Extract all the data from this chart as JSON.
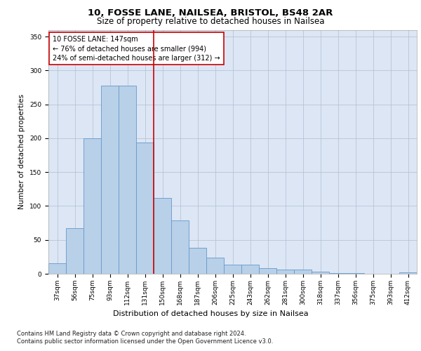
{
  "title1": "10, FOSSE LANE, NAILSEA, BRISTOL, BS48 2AR",
  "title2": "Size of property relative to detached houses in Nailsea",
  "xlabel": "Distribution of detached houses by size in Nailsea",
  "ylabel": "Number of detached properties",
  "categories": [
    "37sqm",
    "56sqm",
    "75sqm",
    "93sqm",
    "112sqm",
    "131sqm",
    "150sqm",
    "168sqm",
    "187sqm",
    "206sqm",
    "225sqm",
    "243sqm",
    "262sqm",
    "281sqm",
    "300sqm",
    "318sqm",
    "337sqm",
    "356sqm",
    "375sqm",
    "393sqm",
    "412sqm"
  ],
  "values": [
    16,
    67,
    200,
    278,
    278,
    194,
    112,
    79,
    38,
    24,
    13,
    13,
    8,
    6,
    6,
    3,
    1,
    1,
    0,
    0,
    2
  ],
  "bar_color": "#b8d0e8",
  "bar_edge_color": "#6699cc",
  "vline_x": 5.5,
  "vline_color": "#cc0000",
  "annotation_text": "10 FOSSE LANE: 147sqm\n← 76% of detached houses are smaller (994)\n24% of semi-detached houses are larger (312) →",
  "annotation_box_color": "#ffffff",
  "annotation_box_edge": "#cc0000",
  "footnote1": "Contains HM Land Registry data © Crown copyright and database right 2024.",
  "footnote2": "Contains public sector information licensed under the Open Government Licence v3.0.",
  "background_color": "#dce6f5",
  "ylim": [
    0,
    360
  ],
  "yticks": [
    0,
    50,
    100,
    150,
    200,
    250,
    300,
    350
  ],
  "title1_fontsize": 9.5,
  "title2_fontsize": 8.5,
  "xlabel_fontsize": 8,
  "ylabel_fontsize": 7.5,
  "tick_fontsize": 6.5,
  "annot_fontsize": 7,
  "footnote_fontsize": 6
}
